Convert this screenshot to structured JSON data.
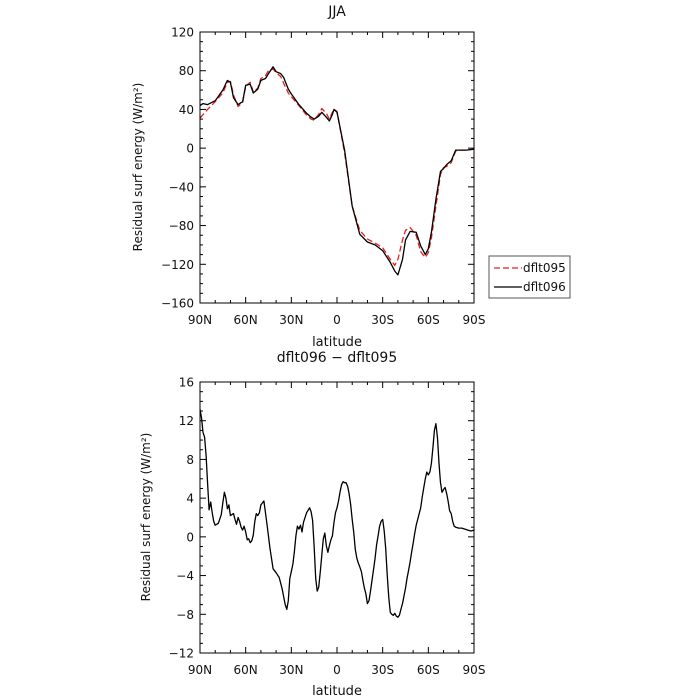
{
  "chart_data": [
    {
      "type": "line",
      "title": "JJA",
      "xlabel": "latitude",
      "ylabel": "Residual surf energy (W/m²)",
      "xlim": [
        90,
        -90
      ],
      "ylim": [
        -160,
        120
      ],
      "yticks": [
        120,
        80,
        40,
        0,
        -40,
        -80,
        -120,
        -160
      ],
      "xtick_labels": [
        "90N",
        "60N",
        "30N",
        "0",
        "30S",
        "60S",
        "90S"
      ],
      "legend": {
        "placement": "right"
      },
      "series": [
        {
          "name": "dflt095",
          "color": "#e0201b",
          "dash": "dashed",
          "x": [
            90,
            85,
            80,
            75,
            72,
            70,
            68,
            65,
            62,
            60,
            57,
            55,
            52,
            50,
            47,
            45,
            42,
            40,
            37,
            35,
            32,
            30,
            25,
            20,
            17,
            15,
            12,
            10,
            7,
            5,
            3,
            2,
            0,
            -5,
            -10,
            -15,
            -20,
            -25,
            -30,
            -35,
            -38,
            -40,
            -43,
            -45,
            -48,
            -52,
            -55,
            -58,
            -60,
            -62,
            -65,
            -68,
            -70,
            -72,
            -75,
            -78,
            -80,
            -85,
            -90
          ],
          "y": [
            31,
            40,
            48,
            57,
            68,
            69,
            55,
            43,
            47,
            64,
            68,
            58,
            62,
            72,
            75,
            80,
            82,
            78,
            74,
            67,
            57,
            53,
            44,
            34,
            30,
            29,
            35,
            41,
            36,
            30,
            37,
            40,
            38,
            -5,
            -60,
            -85,
            -94,
            -98,
            -103,
            -115,
            -121,
            -115,
            -95,
            -85,
            -82,
            -90,
            -107,
            -113,
            -108,
            -93,
            -60,
            -27,
            -20,
            -19,
            -15,
            -3,
            -2,
            -2,
            -1
          ]
        },
        {
          "name": "dflt096",
          "color": "#000000",
          "dash": "solid",
          "x": [
            90,
            88,
            85,
            80,
            75,
            72,
            70,
            68,
            65,
            62,
            60,
            57,
            55,
            52,
            50,
            47,
            45,
            42,
            40,
            37,
            35,
            32,
            30,
            25,
            20,
            17,
            15,
            12,
            10,
            7,
            5,
            3,
            2,
            0,
            -5,
            -10,
            -15,
            -20,
            -25,
            -30,
            -35,
            -38,
            -40,
            -43,
            -45,
            -48,
            -52,
            -55,
            -58,
            -60,
            -62,
            -65,
            -68,
            -70,
            -72,
            -75,
            -78,
            -80,
            -85,
            -90
          ],
          "y": [
            44,
            46,
            45,
            49,
            60,
            70,
            68,
            52,
            45,
            48,
            65,
            66,
            57,
            61,
            70,
            72,
            77,
            84,
            79,
            77,
            73,
            61,
            56,
            45,
            36,
            32,
            30,
            33,
            37,
            32,
            28,
            35,
            40,
            37,
            -2,
            -60,
            -89,
            -97,
            -100,
            -106,
            -118,
            -127,
            -131,
            -115,
            -95,
            -86,
            -87,
            -101,
            -110,
            -104,
            -87,
            -53,
            -24,
            -21,
            -17,
            -13,
            -2,
            -2,
            -2,
            -1
          ]
        }
      ]
    },
    {
      "type": "line",
      "title": "dflt096 − dflt095",
      "xlabel": "latitude",
      "ylabel": "Residual surf energy (W/m²)",
      "xlim": [
        90,
        -90
      ],
      "ylim": [
        -12,
        16
      ],
      "yticks": [
        16,
        12,
        8,
        4,
        0,
        -4,
        -8,
        -12
      ],
      "xtick_labels": [
        "90N",
        "60N",
        "30N",
        "0",
        "30S",
        "60S",
        "90S"
      ],
      "series": [
        {
          "color": "#000000",
          "dash": "solid",
          "x": [
            90,
            89,
            88,
            87,
            86,
            85,
            84,
            83,
            82,
            81,
            80,
            78,
            76,
            75,
            74,
            73,
            72,
            71,
            70,
            68,
            67,
            66,
            65,
            64,
            63,
            62,
            61,
            60,
            59,
            58,
            57,
            56,
            55,
            54,
            53,
            52,
            51,
            50,
            48,
            46,
            44,
            42,
            40,
            38,
            36,
            34,
            33,
            32,
            31,
            30,
            29,
            28,
            27,
            26,
            25,
            24,
            23,
            22,
            20,
            18,
            17,
            16,
            15,
            14,
            13,
            12,
            11,
            10,
            9,
            8,
            7,
            6,
            5,
            4,
            3,
            2,
            1,
            0,
            -1,
            -2,
            -3,
            -4,
            -5,
            -6,
            -7,
            -8,
            -9,
            -10,
            -11,
            -12,
            -13,
            -14,
            -15,
            -16,
            -17,
            -18,
            -19,
            -20,
            -21,
            -22,
            -23,
            -24,
            -25,
            -26,
            -27,
            -28,
            -29,
            -30,
            -31,
            -32,
            -33,
            -34,
            -35,
            -36,
            -37,
            -38,
            -39,
            -40,
            -41,
            -42,
            -43,
            -44,
            -45,
            -46,
            -47,
            -48,
            -49,
            -50,
            -51,
            -52,
            -53,
            -54,
            -55,
            -56,
            -57,
            -58,
            -59,
            -60,
            -61,
            -62,
            -63,
            -64,
            -65,
            -66,
            -67,
            -68,
            -69,
            -70,
            -71,
            -72,
            -73,
            -74,
            -75,
            -76,
            -77,
            -78,
            -80,
            -82,
            -84,
            -86,
            -88,
            -90
          ],
          "y": [
            13.2,
            12.3,
            10.8,
            10.3,
            8.4,
            5.5,
            2.8,
            3.6,
            2.5,
            1.6,
            1.2,
            1.4,
            2.3,
            3.5,
            4.6,
            4.0,
            2.9,
            3.3,
            2.2,
            2.4,
            1.8,
            1.3,
            2.0,
            1.6,
            1.0,
            0.7,
            1.1,
            0.5,
            -0.3,
            -0.2,
            -0.6,
            -0.4,
            0.2,
            1.6,
            2.4,
            2.2,
            2.5,
            3.3,
            3.7,
            1.3,
            -1.2,
            -3.3,
            -3.7,
            -4.2,
            -5.4,
            -7.0,
            -7.5,
            -6.6,
            -4.3,
            -3.6,
            -2.8,
            -1.5,
            0.1,
            1.1,
            0.8,
            1.2,
            0.5,
            1.5,
            2.5,
            3.0,
            2.6,
            1.7,
            -1.1,
            -4.3,
            -5.6,
            -5.2,
            -3.6,
            -1.9,
            -0.2,
            0.4,
            -0.9,
            -1.6,
            -0.9,
            -0.3,
            0.1,
            1.5,
            2.5,
            3.0,
            3.7,
            4.6,
            5.4,
            5.7,
            5.6,
            5.6,
            5.2,
            4.4,
            3.3,
            1.8,
            0.5,
            -1.3,
            -2.2,
            -2.7,
            -3.1,
            -3.6,
            -4.5,
            -5.3,
            -5.9,
            -6.9,
            -6.6,
            -5.6,
            -4.5,
            -3.4,
            -2.2,
            -0.8,
            0.1,
            1.1,
            1.6,
            1.8,
            0.6,
            -1.2,
            -3.9,
            -6.3,
            -7.8,
            -8.0,
            -8.1,
            -7.9,
            -8.2,
            -8.3,
            -8.1,
            -7.5,
            -6.9,
            -6.1,
            -5.3,
            -4.3,
            -3.5,
            -2.6,
            -1.6,
            -0.7,
            0.3,
            1.2,
            1.8,
            2.4,
            3.0,
            4.1,
            5.1,
            6.0,
            6.7,
            6.4,
            6.7,
            7.6,
            9.2,
            11.0,
            11.7,
            10.2,
            7.6,
            5.6,
            4.6,
            4.9,
            5.1,
            4.5,
            3.7,
            2.7,
            2.4,
            1.6,
            1.1,
            1.0,
            0.9,
            0.9,
            0.8,
            0.7,
            0.6,
            0.7
          ]
        }
      ]
    }
  ]
}
